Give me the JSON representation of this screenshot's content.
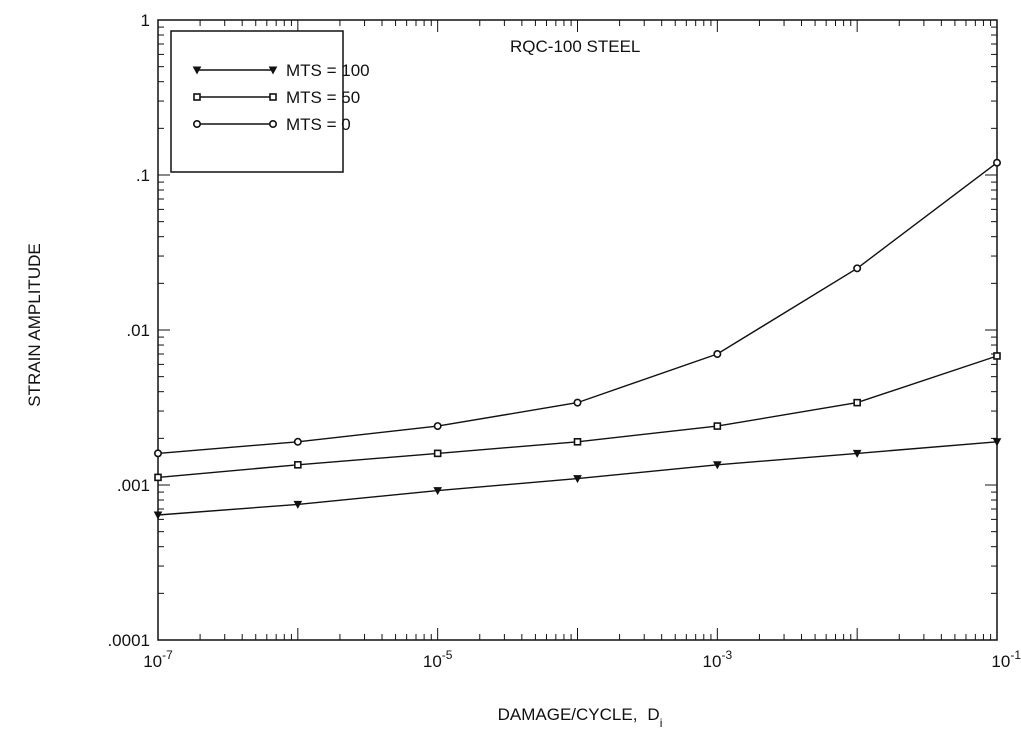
{
  "chart_data": {
    "type": "line",
    "annotation": "RQC-100 STEEL",
    "xlabel": "DAMAGE/CYCLE,",
    "xlabel_symbol": "D",
    "xlabel_subscript": "i",
    "ylabel": "STRAIN AMPLITUDE",
    "x_scale": "log",
    "y_scale": "log",
    "xlim": [
      1e-07,
      0.1
    ],
    "ylim": [
      0.0001,
      1
    ],
    "grid": false,
    "legend_position": "top-left",
    "x_ticks": [
      {
        "value": 1e-07,
        "base": "10",
        "exp": "-7"
      },
      {
        "value": 1e-05,
        "base": "10",
        "exp": "-5"
      },
      {
        "value": 0.001,
        "base": "10",
        "exp": "-3"
      },
      {
        "value": 0.1,
        "base": "10",
        "exp": "-1"
      }
    ],
    "y_ticks": [
      {
        "value": 1,
        "label": "1"
      },
      {
        "value": 0.1,
        "label": ".1"
      },
      {
        "value": 0.01,
        "label": ".01"
      },
      {
        "value": 0.001,
        "label": ".001"
      },
      {
        "value": 0.0001,
        "label": ".0001"
      }
    ],
    "x": [
      1e-07,
      1e-06,
      1e-05,
      0.0001,
      0.001,
      0.01,
      0.1
    ],
    "series": [
      {
        "name": "MTS = 100",
        "marker": "triangle",
        "values": [
          0.00064,
          0.00075,
          0.00092,
          0.0011,
          0.00135,
          0.0016,
          0.0019
        ]
      },
      {
        "name": "MTS = 50",
        "marker": "square",
        "values": [
          0.00112,
          0.00135,
          0.0016,
          0.0019,
          0.0024,
          0.0034,
          0.0068
        ]
      },
      {
        "name": "MTS = 0",
        "marker": "circle",
        "values": [
          0.0016,
          0.0019,
          0.0024,
          0.0034,
          0.007,
          0.025,
          0.12
        ]
      }
    ]
  }
}
